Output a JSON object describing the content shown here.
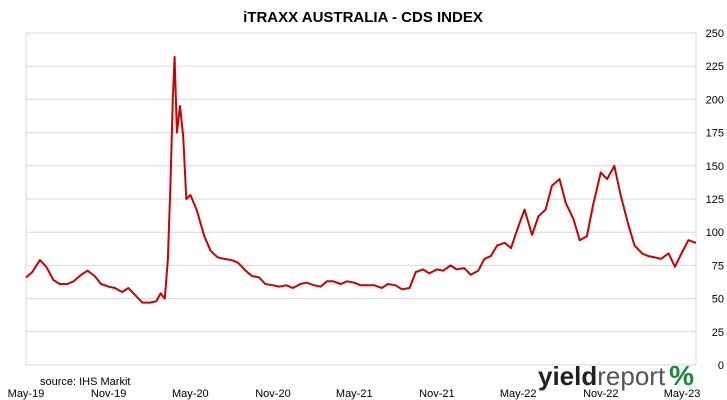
{
  "chart_data": {
    "type": "line",
    "title": "iTRAXX AUSTRALIA - CDS INDEX",
    "xlabel": "",
    "ylabel": "",
    "ylim": [
      0,
      250
    ],
    "y_ticks": [
      "0",
      "25",
      "50",
      "75",
      "100",
      "125",
      "150",
      "175",
      "200",
      "225",
      "250"
    ],
    "y_axis_side": "right",
    "x_ticks": [
      "May-19",
      "Nov-19",
      "May-20",
      "Nov-20",
      "May-21",
      "Nov-21",
      "May-22",
      "Nov-22",
      "May-23"
    ],
    "grid": "horizontal",
    "legend": "none",
    "series": [
      {
        "color": "#cc0000",
        "x": [
          "2019-05-01",
          "2019-05-15",
          "2019-06-01",
          "2019-06-15",
          "2019-07-01",
          "2019-07-15",
          "2019-08-01",
          "2019-08-15",
          "2019-09-01",
          "2019-09-15",
          "2019-10-01",
          "2019-10-15",
          "2019-11-01",
          "2019-11-15",
          "2019-12-01",
          "2019-12-15",
          "2020-01-01",
          "2020-01-15",
          "2020-02-01",
          "2020-02-15",
          "2020-02-25",
          "2020-03-05",
          "2020-03-12",
          "2020-03-18",
          "2020-03-23",
          "2020-03-27",
          "2020-04-01",
          "2020-04-08",
          "2020-04-15",
          "2020-04-22",
          "2020-05-01",
          "2020-05-15",
          "2020-06-01",
          "2020-06-15",
          "2020-07-01",
          "2020-07-15",
          "2020-08-01",
          "2020-08-15",
          "2020-09-01",
          "2020-09-15",
          "2020-10-01",
          "2020-10-15",
          "2020-11-01",
          "2020-11-15",
          "2020-12-01",
          "2020-12-15",
          "2021-01-01",
          "2021-01-15",
          "2021-02-01",
          "2021-02-15",
          "2021-03-01",
          "2021-03-15",
          "2021-04-01",
          "2021-04-15",
          "2021-05-01",
          "2021-05-15",
          "2021-06-01",
          "2021-06-15",
          "2021-07-01",
          "2021-07-15",
          "2021-08-01",
          "2021-08-15",
          "2021-09-01",
          "2021-09-15",
          "2021-10-01",
          "2021-10-15",
          "2021-11-01",
          "2021-11-15",
          "2021-12-01",
          "2021-12-15",
          "2022-01-01",
          "2022-01-15",
          "2022-02-01",
          "2022-02-15",
          "2022-03-01",
          "2022-03-15",
          "2022-04-01",
          "2022-04-15",
          "2022-05-01",
          "2022-05-15",
          "2022-06-01",
          "2022-06-15",
          "2022-07-01",
          "2022-07-15",
          "2022-08-01",
          "2022-08-15",
          "2022-09-01",
          "2022-09-15",
          "2022-10-01",
          "2022-10-15",
          "2022-11-01",
          "2022-11-15",
          "2022-12-01",
          "2022-12-15",
          "2023-01-01",
          "2023-01-15",
          "2023-02-01",
          "2023-02-15",
          "2023-03-01",
          "2023-03-15",
          "2023-04-01",
          "2023-04-15",
          "2023-05-01",
          "2023-05-15",
          "2023-06-01"
        ],
        "values": [
          66,
          70,
          79,
          74,
          64,
          61,
          61,
          63,
          68,
          71,
          67,
          61,
          59,
          58,
          55,
          58,
          52,
          47,
          47,
          48,
          54,
          50,
          80,
          140,
          200,
          232,
          175,
          195,
          172,
          125,
          128,
          117,
          97,
          86,
          81,
          80,
          79,
          77,
          71,
          67,
          66,
          61,
          60,
          59,
          60,
          58,
          61,
          62,
          60,
          59,
          63,
          63,
          61,
          63,
          62,
          60,
          60,
          60,
          58,
          61,
          60,
          57,
          58,
          70,
          72,
          69,
          72,
          71,
          75,
          72,
          73,
          68,
          71,
          80,
          82,
          90,
          92,
          88,
          104,
          117,
          98,
          112,
          117,
          135,
          140,
          122,
          110,
          94,
          97,
          121,
          145,
          140,
          150,
          128,
          106,
          90,
          84,
          82,
          81,
          80,
          84,
          74,
          85,
          94,
          92
        ]
      }
    ],
    "source": "source: IHS Markit",
    "logo": {
      "part1": "yield",
      "part2": "report",
      "symbol": "%"
    }
  }
}
